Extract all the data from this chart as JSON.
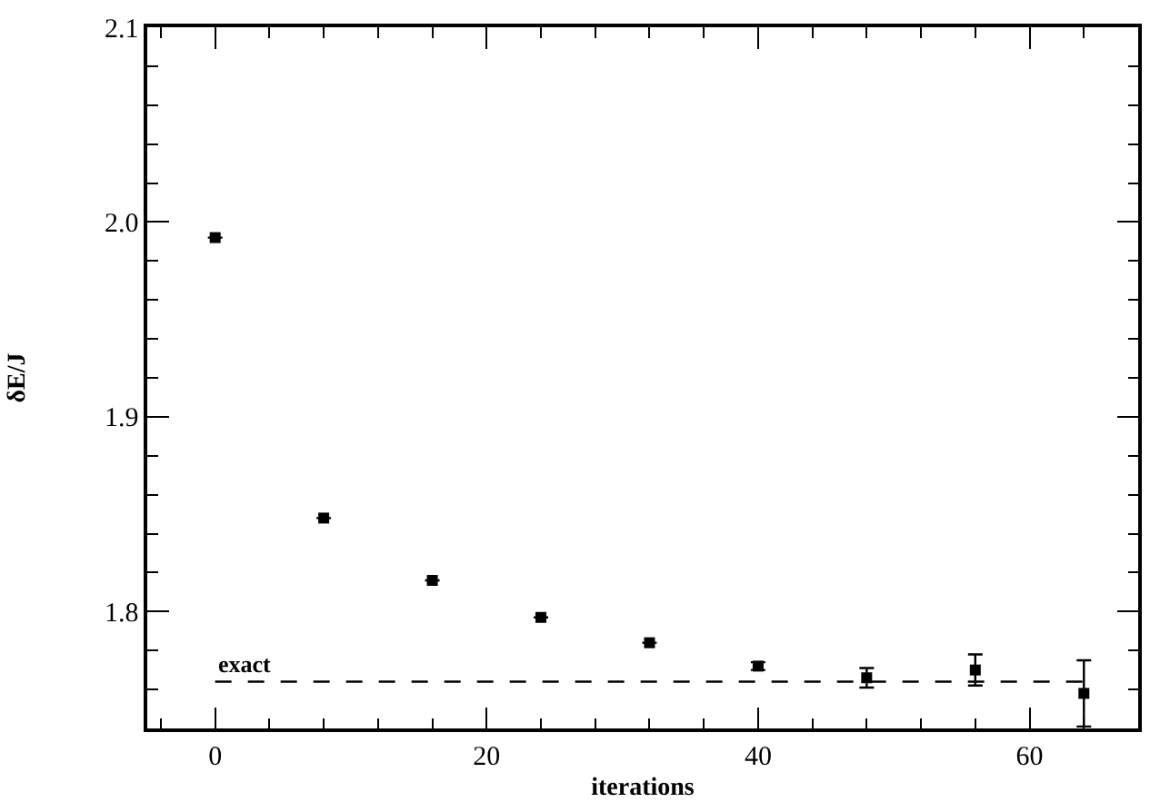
{
  "chart_data": {
    "type": "scatter",
    "xlabel": "iterations",
    "ylabel": "δE/J",
    "x": [
      0,
      8,
      16,
      24,
      32,
      40,
      48,
      56,
      64
    ],
    "series": [
      {
        "color": "#000000",
        "values": [
          1.992,
          1.848,
          1.816,
          1.797,
          1.784,
          1.772,
          1.766,
          1.77,
          1.758
        ],
        "errors": [
          null,
          null,
          null,
          null,
          null,
          0.002,
          0.005,
          0.008,
          0.017
        ]
      }
    ],
    "xlim": [
      -5,
      68
    ],
    "ylim": [
      1.74,
      2.1
    ],
    "xticks": [
      {
        "value": -4,
        "label": null
      },
      0,
      {
        "value": 4,
        "label": null
      },
      {
        "value": 8,
        "label": null
      },
      {
        "value": 12,
        "label": null
      },
      {
        "value": 16,
        "label": null
      },
      20,
      {
        "value": 24,
        "label": null
      },
      {
        "value": 28,
        "label": null
      },
      {
        "value": 32,
        "label": null
      },
      {
        "value": 36,
        "label": null
      },
      40,
      {
        "value": 44,
        "label": null
      },
      {
        "value": 48,
        "label": null
      },
      {
        "value": 52,
        "label": null
      },
      {
        "value": 56,
        "label": null
      },
      60,
      {
        "value": 64,
        "label": null
      }
    ],
    "yticks": [
      {
        "value": 1.76,
        "label": null
      },
      {
        "value": 1.78,
        "label": null
      },
      {
        "value": 1.8,
        "label": "1.8"
      },
      {
        "value": 1.82,
        "label": null
      },
      {
        "value": 1.84,
        "label": null
      },
      {
        "value": 1.86,
        "label": null
      },
      {
        "value": 1.88,
        "label": null
      },
      {
        "value": 1.9,
        "label": "1.9"
      },
      {
        "value": 1.92,
        "label": null
      },
      {
        "value": 1.94,
        "label": null
      },
      {
        "value": 1.96,
        "label": null
      },
      {
        "value": 1.98,
        "label": null
      },
      {
        "value": 2.0,
        "label": "2.0"
      },
      {
        "value": 2.02,
        "label": null
      },
      {
        "value": 2.04,
        "label": null
      },
      {
        "value": 2.06,
        "label": null
      },
      {
        "value": 2.08,
        "label": null
      },
      {
        "value": 2.1,
        "label": "2.1"
      }
    ],
    "ref_lines": [
      {
        "axis": "y",
        "value": 1.764,
        "label": "exact",
        "color": "#000000",
        "line_style": "dashed"
      }
    ],
    "marker": "square"
  }
}
